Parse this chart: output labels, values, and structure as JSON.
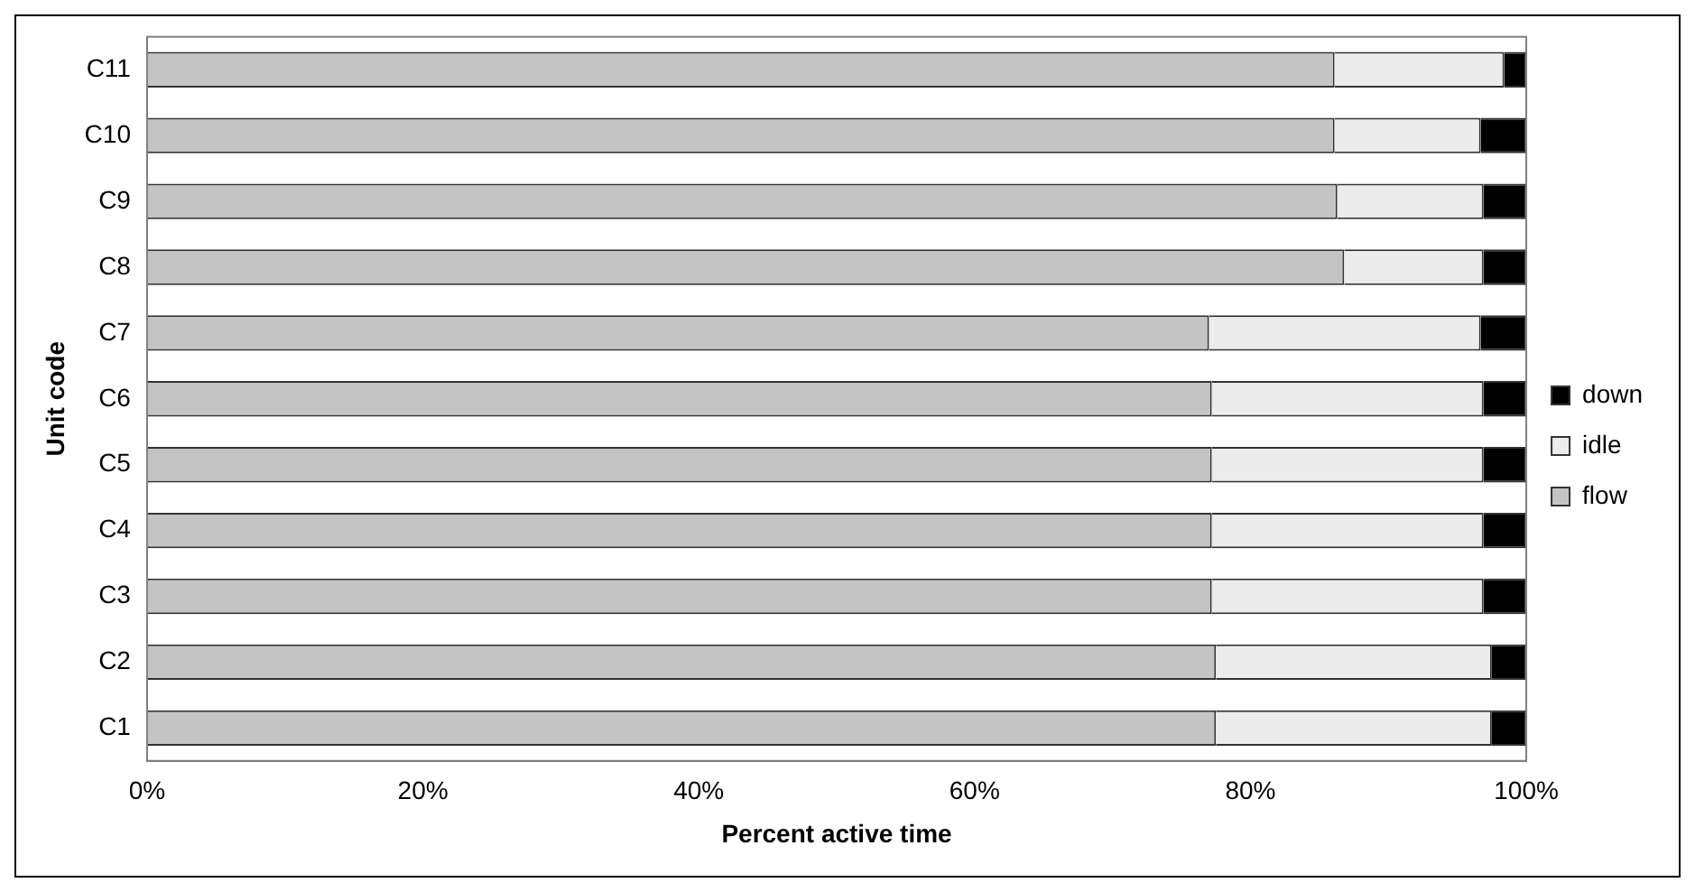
{
  "chart_data": {
    "type": "bar",
    "orientation": "horizontal",
    "stacked": true,
    "xlabel": "Percent active time",
    "ylabel": "Unit code",
    "categories": [
      "C11",
      "C10",
      "C9",
      "C8",
      "C7",
      "C6",
      "C5",
      "C4",
      "C3",
      "C2",
      "C1"
    ],
    "series": [
      {
        "name": "flow",
        "color": "#c4c4c4",
        "values": [
          86.1,
          86.1,
          86.3,
          86.8,
          77.0,
          77.2,
          77.2,
          77.2,
          77.2,
          77.5,
          77.5
        ]
      },
      {
        "name": "idle",
        "color": "#ececec",
        "values": [
          12.3,
          10.6,
          10.6,
          10.1,
          19.7,
          19.7,
          19.7,
          19.7,
          19.7,
          20.0,
          20.0
        ]
      },
      {
        "name": "down",
        "color": "#000000",
        "values": [
          1.6,
          3.3,
          3.1,
          3.1,
          3.3,
          3.1,
          3.1,
          3.1,
          3.1,
          2.5,
          2.5
        ]
      }
    ],
    "xlim": [
      0,
      100
    ],
    "xticks": [
      {
        "value": 0,
        "label": "0%"
      },
      {
        "value": 20,
        "label": "20%"
      },
      {
        "value": 40,
        "label": "40%"
      },
      {
        "value": 60,
        "label": "60%"
      },
      {
        "value": 80,
        "label": "80%"
      },
      {
        "value": 100,
        "label": "100%"
      }
    ],
    "grid": false,
    "legend": "right"
  }
}
